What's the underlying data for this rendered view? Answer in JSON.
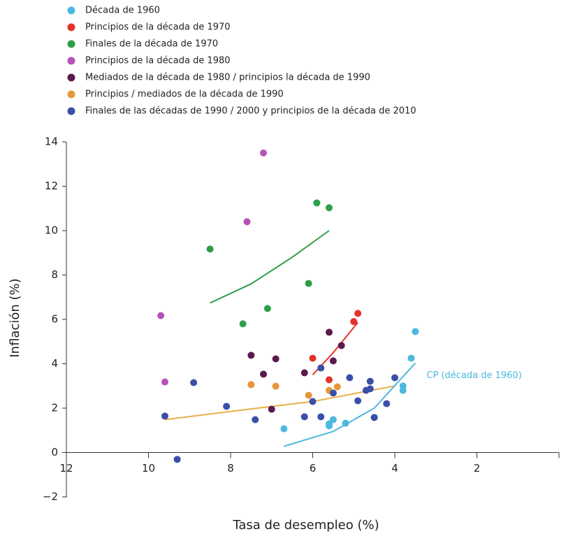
{
  "chart_data": {
    "type": "scatter",
    "xlabel": "Tasa de desempleo (%)",
    "ylabel": "Inflación (%)",
    "xlim": [
      12,
      0
    ],
    "ylim": [
      -2,
      14
    ],
    "xticks": [
      12,
      10,
      8,
      6,
      4,
      2
    ],
    "yticks": [
      {
        "value": -2,
        "label": "−2"
      },
      0,
      2,
      4,
      6,
      8,
      10,
      12,
      14
    ],
    "series": [
      {
        "name": "Década de 1960",
        "color": "#4db8e0",
        "x": [
          3.5,
          3.6,
          3.8,
          3.8,
          4.5,
          5.2,
          5.5,
          5.6,
          5.6,
          6.7
        ],
        "y": [
          5.45,
          4.25,
          3.0,
          2.8,
          1.58,
          1.32,
          1.48,
          1.29,
          1.2,
          1.07
        ]
      },
      {
        "name": "Principios de la década de 1970",
        "color": "#e3322b",
        "x": [
          4.9,
          5.0,
          6.0,
          5.6
        ],
        "y": [
          6.27,
          5.9,
          4.25,
          3.28
        ]
      },
      {
        "name": "Finales de la década de 1970",
        "color": "#2e9e47",
        "x": [
          5.9,
          5.6,
          8.5,
          6.1,
          7.1,
          7.7
        ],
        "y": [
          11.25,
          11.03,
          9.17,
          7.62,
          6.49,
          5.8
        ]
      },
      {
        "name": "Principios de la década de 1980",
        "color": "#b552b8",
        "x": [
          7.2,
          7.6,
          9.7,
          9.6
        ],
        "y": [
          13.5,
          10.4,
          6.17,
          3.18
        ]
      },
      {
        "name": "Mediados de la década de 1980 / principios la década de 1990",
        "color": "#5c1a4e",
        "x": [
          5.6,
          5.3,
          7.5,
          6.9,
          5.5,
          7.2,
          6.2,
          7.0
        ],
        "y": [
          5.42,
          4.82,
          4.38,
          4.22,
          4.13,
          3.53,
          3.59,
          1.95
        ]
      },
      {
        "name": "Principios / mediados de la década de 1990",
        "color": "#e8963a",
        "x": [
          7.5,
          6.9,
          5.4,
          5.6,
          6.1
        ],
        "y": [
          3.06,
          2.99,
          2.96,
          2.8,
          2.58
        ]
      },
      {
        "name": "Finales de las décadas de 1990 / 2000 y principios de la década de 2010",
        "color": "#3a4fa8",
        "x": [
          8.9,
          9.6,
          9.3,
          8.1,
          7.4,
          6.2,
          5.8,
          6.0,
          5.8,
          5.5,
          5.1,
          4.9,
          4.7,
          4.6,
          4.6,
          4.5,
          4.2,
          4.0
        ],
        "y": [
          3.15,
          1.64,
          -0.31,
          2.08,
          1.48,
          1.61,
          1.61,
          2.3,
          3.81,
          2.68,
          3.37,
          2.33,
          2.8,
          2.87,
          3.21,
          1.58,
          2.2,
          3.37
        ]
      }
    ],
    "curves": [
      {
        "color": "#2e9e47",
        "x": [
          8.5,
          7.5,
          6.5,
          5.6
        ],
        "y": [
          6.74,
          7.6,
          8.8,
          10.0
        ]
      },
      {
        "color": "#e3322b",
        "x": [
          6.0,
          5.5,
          4.9
        ],
        "y": [
          3.5,
          4.5,
          5.86
        ]
      },
      {
        "color": "#e8b04a",
        "x": [
          9.6,
          8,
          6,
          4
        ],
        "y": [
          1.48,
          1.85,
          2.3,
          3.0
        ]
      },
      {
        "color": "#4db8e0",
        "label": "CP (década de 1960)",
        "x": [
          6.7,
          5.5,
          4.5,
          3.5
        ],
        "y": [
          0.28,
          0.95,
          2.0,
          4.03
        ]
      }
    ]
  }
}
